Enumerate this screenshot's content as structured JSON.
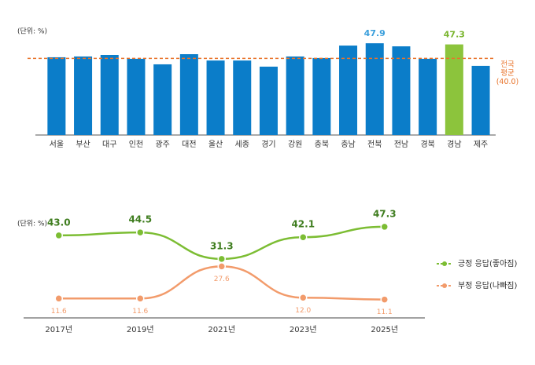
{
  "chart_data": [
    {
      "type": "bar",
      "unit_label": "(단위: %)",
      "categories": [
        "서울",
        "부산",
        "대구",
        "인천",
        "광주",
        "대전",
        "울산",
        "세종",
        "경기",
        "강원",
        "충북",
        "충남",
        "전북",
        "전남",
        "경북",
        "경남",
        "제주"
      ],
      "values": [
        40.6,
        41.0,
        41.8,
        39.8,
        36.9,
        42.2,
        38.9,
        38.9,
        35.7,
        41.0,
        40.2,
        46.7,
        47.9,
        46.3,
        39.8,
        47.3,
        36.1
      ],
      "value_labels": [
        null,
        null,
        null,
        null,
        null,
        null,
        null,
        null,
        null,
        null,
        null,
        null,
        "47.9",
        null,
        null,
        "47.3",
        null
      ],
      "colors": [
        "#0b7dc9",
        "#0b7dc9",
        "#0b7dc9",
        "#0b7dc9",
        "#0b7dc9",
        "#0b7dc9",
        "#0b7dc9",
        "#0b7dc9",
        "#0b7dc9",
        "#0b7dc9",
        "#0b7dc9",
        "#0b7dc9",
        "#0b7dc9",
        "#0b7dc9",
        "#0b7dc9",
        "#8cc43c",
        "#0b7dc9"
      ],
      "label_colors": [
        null,
        null,
        null,
        null,
        null,
        null,
        null,
        null,
        null,
        null,
        null,
        null,
        "#3a9fdc",
        null,
        null,
        "#7ab52e",
        null
      ],
      "ylim": [
        0,
        50
      ],
      "reference_line": {
        "value": 40.0,
        "label": [
          "전국",
          "평균",
          "(40.0)"
        ],
        "color": "#e8732a"
      }
    },
    {
      "type": "line",
      "unit_label": "(단위: %)",
      "categories": [
        "2017년",
        "2019년",
        "2021년",
        "2023년",
        "2025년"
      ],
      "series": [
        {
          "name": "긍정 응답(좋아짐)",
          "color": "#7cbd33",
          "values": [
            43.0,
            44.5,
            31.3,
            42.1,
            47.3
          ],
          "value_labels": [
            "43.0",
            "44.5",
            "31.3",
            "42.1",
            "47.3"
          ]
        },
        {
          "name": "부정 응답(나빠짐)",
          "color": "#f29b6b",
          "values": [
            11.6,
            11.6,
            27.6,
            12.0,
            11.1
          ],
          "value_labels": [
            "11.6",
            "11.6",
            "27.6",
            "12.0",
            "11.1"
          ]
        }
      ],
      "ylim": [
        0,
        50
      ],
      "legend": "right"
    }
  ]
}
